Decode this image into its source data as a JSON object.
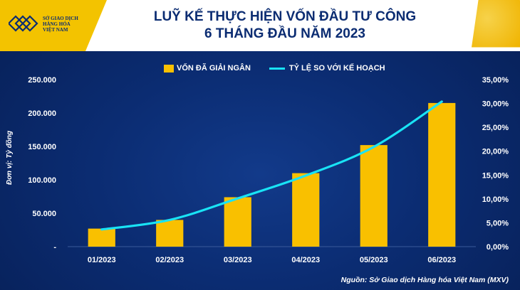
{
  "logo": {
    "line1": "SỞ GIAO DỊCH",
    "line2": "HÀNG HÓA",
    "line3": "VIỆT NAM"
  },
  "header": {
    "title_line1": "LUỸ KẾ THỰC HIỆN VỐN ĐẦU TƯ CÔNG",
    "title_line2": "6 THÁNG ĐẦU NĂM 2023"
  },
  "source": "Nguồn: Sở Giao dịch Hàng hóa Việt Nam (MXV)",
  "colors": {
    "bar": "#f9c000",
    "line": "#19e3f5",
    "grid": "#3a5a9a",
    "text": "#ffffff"
  },
  "chart_data": {
    "type": "bar",
    "categories": [
      "01/2023",
      "02/2023",
      "03/2023",
      "04/2023",
      "05/2023",
      "06/2023"
    ],
    "series": [
      {
        "name": "VỐN ĐÃ GIẢI NGÂN",
        "type": "bar",
        "axis": "left",
        "values": [
          27000,
          40000,
          74000,
          110000,
          152000,
          215000
        ]
      },
      {
        "name": "TỶ LỆ SO VỚI KẾ HOẠCH",
        "type": "line",
        "axis": "right",
        "values": [
          3.6,
          5.6,
          10.1,
          14.9,
          20.9,
          30.4
        ]
      }
    ],
    "ylabel": "Đơn vị: Tỷ đồng",
    "ylim": [
      0,
      250000
    ],
    "y_ticks": [
      "-",
      "50.000",
      "100.000",
      "150.000",
      "200.000",
      "250.000"
    ],
    "y2lim": [
      0,
      35
    ],
    "y2_ticks": [
      "0,00%",
      "5,00%",
      "10,00%",
      "15,00%",
      "20,00%",
      "25,00%",
      "30,00%",
      "35,00%"
    ],
    "grid": false,
    "legend": "top"
  }
}
